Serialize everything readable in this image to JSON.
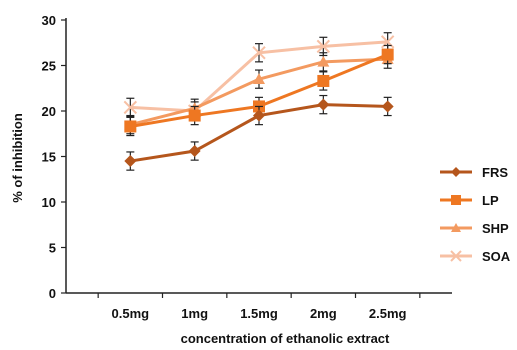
{
  "chart_data": {
    "type": "line",
    "categories": [
      "0.5mg",
      "1mg",
      "1.5mg",
      "2mg",
      "2.5mg"
    ],
    "xlabel": "concentration of ethanolic extract",
    "ylabel": "% of inhibition",
    "ylim": [
      0,
      30
    ],
    "yticks": [
      0,
      5,
      10,
      15,
      20,
      25,
      30
    ],
    "grid": false,
    "legend_position": "right",
    "series": [
      {
        "name": "FRS",
        "color": "#b5561c",
        "marker": "diamond",
        "values": [
          14.5,
          15.6,
          19.5,
          20.7,
          20.5
        ],
        "errors": [
          1.0,
          1.0,
          1.0,
          1.0,
          1.0
        ]
      },
      {
        "name": "LP",
        "color": "#ee7722",
        "marker": "square",
        "values": [
          18.3,
          19.5,
          20.5,
          23.3,
          26.2
        ],
        "errors": [
          1.0,
          1.0,
          1.0,
          1.0,
          1.0
        ]
      },
      {
        "name": "SHP",
        "color": "#f39a60",
        "marker": "triangle",
        "values": [
          18.5,
          20.3,
          23.5,
          25.4,
          25.7
        ],
        "errors": [
          1.0,
          1.0,
          1.0,
          1.0,
          1.0
        ]
      },
      {
        "name": "SOA",
        "color": "#f7c0a4",
        "marker": "x",
        "values": [
          20.4,
          20.0,
          26.4,
          27.1,
          27.6
        ],
        "errors": [
          1.0,
          1.0,
          1.0,
          1.0,
          1.0
        ]
      }
    ]
  }
}
